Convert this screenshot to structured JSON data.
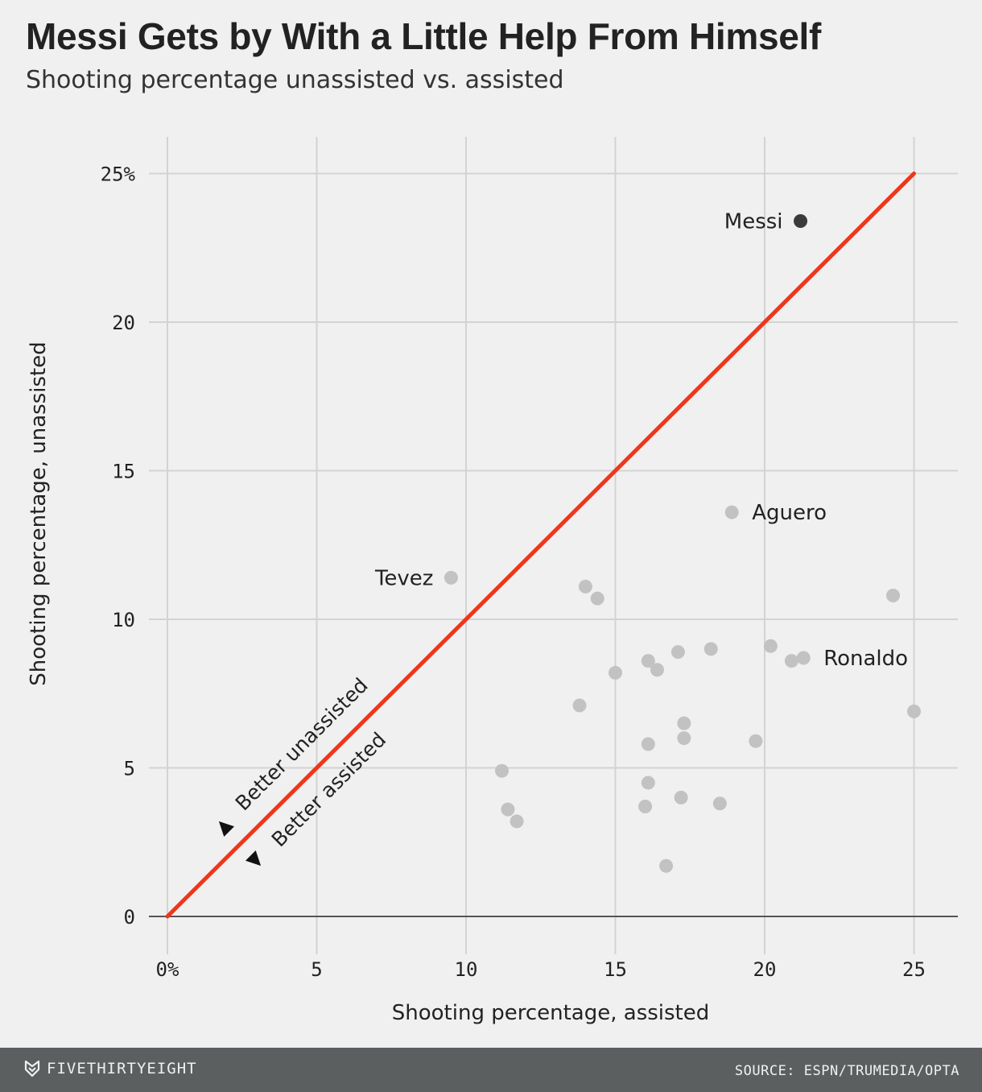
{
  "header": {
    "title": "Messi Gets by With a Little Help From Himself",
    "subtitle": "Shooting percentage unassisted vs. assisted"
  },
  "footer": {
    "brand": "FIVETHIRTYEIGHT",
    "brand_icon": "fivethirtyeight-fox-icon",
    "source": "SOURCE: ESPN/TRUMEDIA/OPTA",
    "background": "#5c5f60"
  },
  "colors": {
    "background": "#f0f0f0",
    "diagonal": "#f0361a",
    "highlight_point": "#3b3b3b",
    "point": "#c2c2c2",
    "grid": "#d3d3d3"
  },
  "chart_data": {
    "type": "scatter",
    "xlabel": "Shooting percentage, assisted",
    "ylabel": "Shooting percentage, unassisted",
    "xlim": [
      0,
      26.5
    ],
    "ylim": [
      -1,
      26
    ],
    "x_ticks": [
      {
        "value": 0,
        "label": "0%"
      },
      {
        "value": 5,
        "label": "5"
      },
      {
        "value": 10,
        "label": "10"
      },
      {
        "value": 15,
        "label": "15"
      },
      {
        "value": 20,
        "label": "20"
      },
      {
        "value": 25,
        "label": "25"
      }
    ],
    "y_ticks": [
      {
        "value": 0,
        "label": "0"
      },
      {
        "value": 5,
        "label": "5"
      },
      {
        "value": 10,
        "label": "10"
      },
      {
        "value": 15,
        "label": "15"
      },
      {
        "value": 20,
        "label": "20"
      },
      {
        "value": 25,
        "label": "25%"
      }
    ],
    "grid": true,
    "reference_line": {
      "from": [
        0,
        0
      ],
      "to": [
        25,
        25
      ],
      "color": "#f0361a"
    },
    "annotations": [
      {
        "text": "Better unassisted",
        "direction": "up-left"
      },
      {
        "text": "Better assisted",
        "direction": "down-right"
      }
    ],
    "points": [
      {
        "x": 21.2,
        "y": 23.4,
        "label": "Messi",
        "highlight": true
      },
      {
        "x": 18.9,
        "y": 13.6,
        "label": "Aguero"
      },
      {
        "x": 9.5,
        "y": 11.4,
        "label": "Tevez"
      },
      {
        "x": 21.3,
        "y": 8.7,
        "label": "Ronaldo"
      },
      {
        "x": 14.0,
        "y": 11.1
      },
      {
        "x": 14.4,
        "y": 10.7
      },
      {
        "x": 24.3,
        "y": 10.8
      },
      {
        "x": 20.2,
        "y": 9.1
      },
      {
        "x": 20.9,
        "y": 8.6
      },
      {
        "x": 18.2,
        "y": 9.0
      },
      {
        "x": 17.1,
        "y": 8.9
      },
      {
        "x": 16.1,
        "y": 8.6
      },
      {
        "x": 16.4,
        "y": 8.3
      },
      {
        "x": 15.0,
        "y": 8.2
      },
      {
        "x": 13.8,
        "y": 7.1
      },
      {
        "x": 25.0,
        "y": 6.9
      },
      {
        "x": 17.3,
        "y": 6.5
      },
      {
        "x": 17.3,
        "y": 6.0
      },
      {
        "x": 19.7,
        "y": 5.9
      },
      {
        "x": 16.1,
        "y": 5.8
      },
      {
        "x": 11.2,
        "y": 4.9
      },
      {
        "x": 16.1,
        "y": 4.5
      },
      {
        "x": 17.2,
        "y": 4.0
      },
      {
        "x": 18.5,
        "y": 3.8
      },
      {
        "x": 16.0,
        "y": 3.7
      },
      {
        "x": 11.4,
        "y": 3.6
      },
      {
        "x": 11.7,
        "y": 3.2
      },
      {
        "x": 16.7,
        "y": 1.7
      }
    ]
  }
}
